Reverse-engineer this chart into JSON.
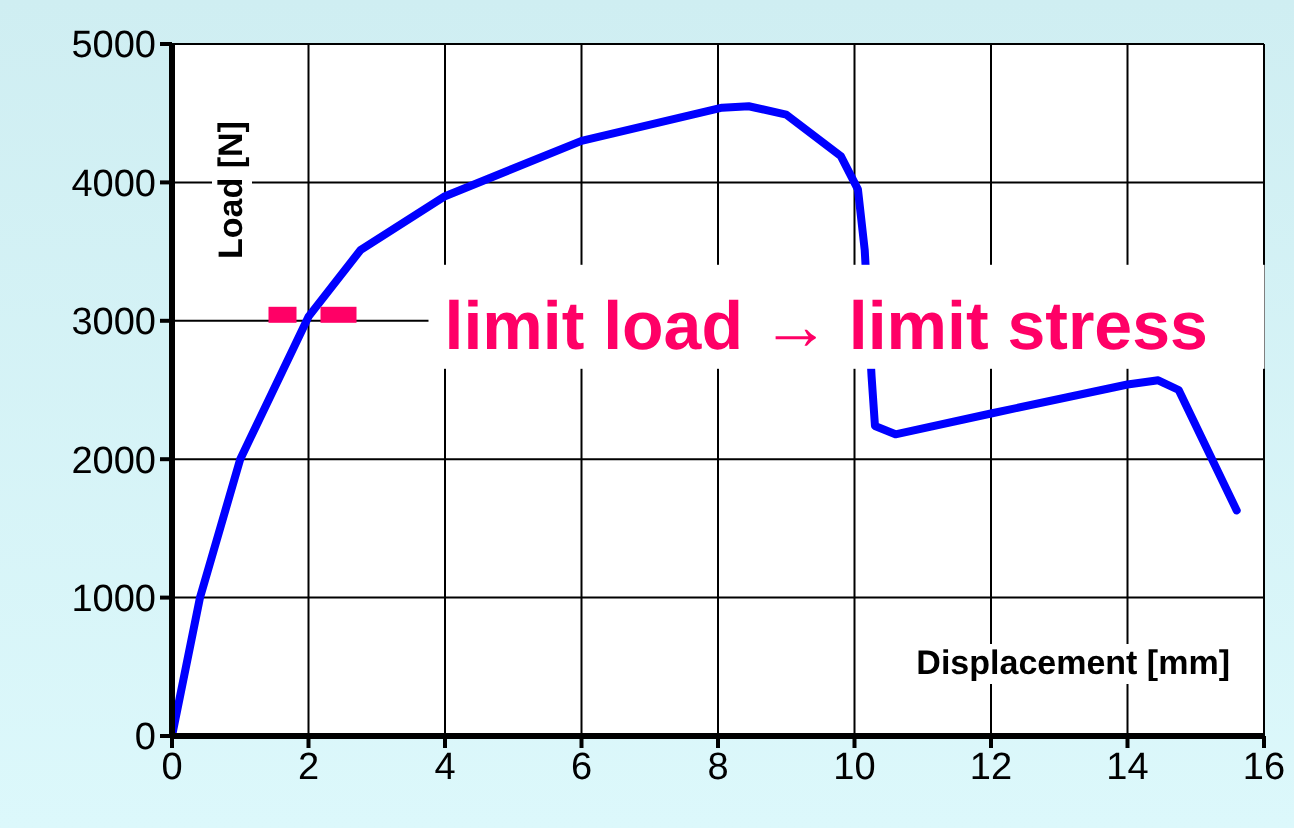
{
  "chart_data": {
    "type": "line",
    "xlabel": "Displacement [mm]",
    "ylabel": "Load [N]",
    "series": [
      {
        "color": "#0000ff",
        "x": [
          0,
          0.41,
          1.0,
          2.0,
          2.76,
          4.0,
          6.0,
          8.06,
          8.45,
          9.0,
          9.8,
          10.05,
          10.15,
          10.25,
          10.3,
          10.6,
          12.0,
          14.0,
          14.45,
          14.75,
          15.6
        ],
        "values": [
          0,
          1000,
          2000,
          3030,
          3510,
          3900,
          4300,
          4540,
          4550,
          4490,
          4190,
          3950,
          3510,
          2600,
          2240,
          2180,
          2330,
          2540,
          2570,
          2500,
          1630
        ]
      }
    ],
    "annotations": [
      {
        "text": "limit load → limit stress",
        "x": 2,
        "y": 3000
      }
    ],
    "xlim": [
      0,
      16
    ],
    "xticks": [
      0,
      2,
      4,
      6,
      8,
      10,
      12,
      14,
      16
    ],
    "ylim": [
      0,
      5000
    ],
    "yticks": [
      0,
      1000,
      2000,
      3000,
      4000,
      5000
    ],
    "grid": true,
    "marker": "none",
    "line_style": "solid"
  }
}
